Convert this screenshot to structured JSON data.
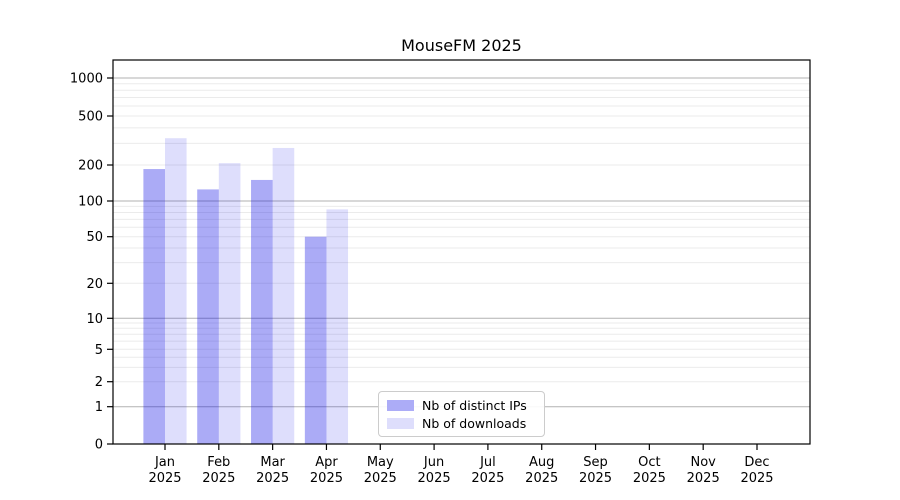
{
  "title": "MouseFM 2025",
  "chart_data": {
    "type": "bar",
    "title": "MouseFM 2025",
    "categories": [
      "Jan",
      "Feb",
      "Mar",
      "Apr",
      "May",
      "Jun",
      "Jul",
      "Aug",
      "Sep",
      "Oct",
      "Nov",
      "Dec"
    ],
    "category_year": "2025",
    "series": [
      {
        "name": "Nb of distinct IPs",
        "color": "rgba(10,10,230,0.34)",
        "legend_swatch": "#acacf7",
        "values": [
          185,
          125,
          150,
          50,
          null,
          null,
          null,
          null,
          null,
          null,
          null,
          null
        ]
      },
      {
        "name": "Nb of downloads",
        "color": "rgba(10,10,230,0.135)",
        "legend_swatch": "#dedefc",
        "values": [
          330,
          207,
          275,
          85,
          null,
          null,
          null,
          null,
          null,
          null,
          null,
          null
        ]
      }
    ],
    "yticks": [
      0,
      1,
      2,
      5,
      10,
      20,
      50,
      100,
      200,
      500,
      1000
    ],
    "y_scale": "asinh (log-like above 1, linear 0-1)",
    "ylim": [
      0,
      1400
    ],
    "grid": true,
    "grid_major_color": "#b2b2b2",
    "grid_minor_color": "#ebebeb",
    "legend_position": "lower center inside plot",
    "spine_color": "#000000"
  }
}
